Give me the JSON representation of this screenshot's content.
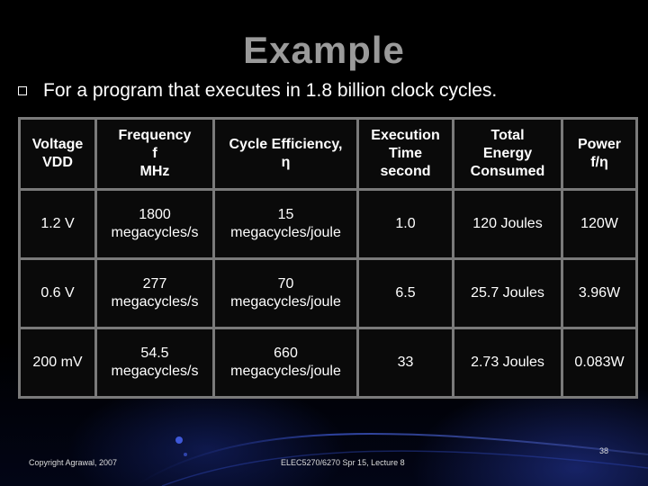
{
  "slide": {
    "title": "Example",
    "bullet": "For a program that executes in 1.8 billion clock cycles.",
    "bullet_icon": "hollow-square-bullet-icon"
  },
  "table": {
    "headers": [
      [
        "Voltage",
        "VDD"
      ],
      [
        "Frequency",
        "f",
        "MHz"
      ],
      [
        "Cycle Efficiency,",
        "η"
      ],
      [
        "Execution",
        "Time",
        "second"
      ],
      [
        "Total",
        "Energy",
        "Consumed"
      ],
      [
        "Power",
        "f/η"
      ]
    ],
    "rows": [
      [
        [
          "1.2 V"
        ],
        [
          "1800",
          "megacycles/s"
        ],
        [
          "15",
          "megacycles/joule"
        ],
        [
          "1.0"
        ],
        [
          "120 Joules"
        ],
        [
          "120W"
        ]
      ],
      [
        [
          "0.6 V"
        ],
        [
          "277",
          "megacycles/s"
        ],
        [
          "70",
          "megacycles/joule"
        ],
        [
          "6.5"
        ],
        [
          "25.7 Joules"
        ],
        [
          "3.96W"
        ]
      ],
      [
        [
          "200 mV"
        ],
        [
          "54.5",
          "megacycles/s"
        ],
        [
          "660",
          "megacycles/joule"
        ],
        [
          "33"
        ],
        [
          "2.73 Joules"
        ],
        [
          "0.083W"
        ]
      ]
    ]
  },
  "footer": {
    "left": "Copyright Agrawal, 2007",
    "center": "ELEC5270/6270 Spr 15, Lecture 8",
    "slide_number": "38"
  },
  "colors": {
    "background": "#000000",
    "title": "#9a9a9a",
    "text": "#ffffff",
    "table_border": "#7a7a7a",
    "accent_swoosh": "#2a3fa8"
  }
}
